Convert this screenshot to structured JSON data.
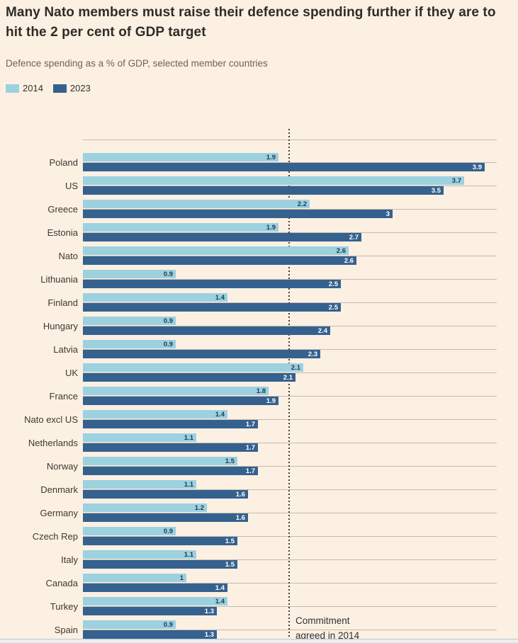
{
  "header": {
    "title_line1": "Many Nato members must raise their defence spending further if they are to",
    "title_line2": "hit the 2 per cent of GDP target",
    "subtitle": "Defence spending as a % of GDP, selected member countries"
  },
  "colors": {
    "background": "#fcf0e3",
    "bar_2014": "#9cd1e0",
    "bar_2023": "#35618e",
    "gridline": "#c3baae",
    "target_line": "#46413b",
    "value_label_on_light": "#1d3a55",
    "value_label_on_dark": "#ffffff"
  },
  "chart_data": {
    "type": "bar",
    "orientation": "horizontal",
    "xlabel": "Defence spending as a % of GDP",
    "x_range": [
      0,
      4.0
    ],
    "grid": "per-category horizontal gridlines",
    "legend_position": "top-left",
    "target_line": {
      "value": 2,
      "label_line1": "Commitment",
      "label_line2": "agreed in 2014"
    },
    "series": [
      {
        "name": "2014",
        "color": "#9cd1e0"
      },
      {
        "name": "2023",
        "color": "#35618e"
      }
    ],
    "categories": [
      "Poland",
      "US",
      "Greece",
      "Estonia",
      "Nato",
      "Lithuania",
      "Finland",
      "Hungary",
      "Latvia",
      "UK",
      "France",
      "Nato excl US",
      "Netherlands",
      "Norway",
      "Denmark",
      "Germany",
      "Czech Rep",
      "Italy",
      "Canada",
      "Turkey",
      "Spain"
    ],
    "rows": [
      {
        "country": "Poland",
        "v2014": 1.9,
        "v2023": 3.9,
        "label2014": "1.9",
        "label2023": "3.9"
      },
      {
        "country": "US",
        "v2014": 3.7,
        "v2023": 3.5,
        "label2014": "3.7",
        "label2023": "3.5"
      },
      {
        "country": "Greece",
        "v2014": 2.2,
        "v2023": 3.0,
        "label2014": "2.2",
        "label2023": "3"
      },
      {
        "country": "Estonia",
        "v2014": 1.9,
        "v2023": 2.7,
        "label2014": "1.9",
        "label2023": "2.7"
      },
      {
        "country": "Nato",
        "v2014": 2.58,
        "v2023": 2.65,
        "label2014": "2.6",
        "label2023": "2.6"
      },
      {
        "country": "Lithuania",
        "v2014": 0.9,
        "v2023": 2.5,
        "label2014": "0.9",
        "label2023": "2.5"
      },
      {
        "country": "Finland",
        "v2014": 1.4,
        "v2023": 2.5,
        "label2014": "1.4",
        "label2023": "2.5"
      },
      {
        "country": "Hungary",
        "v2014": 0.9,
        "v2023": 2.4,
        "label2014": "0.9",
        "label2023": "2.4"
      },
      {
        "country": "Latvia",
        "v2014": 0.9,
        "v2023": 2.3,
        "label2014": "0.9",
        "label2023": "2.3"
      },
      {
        "country": "UK",
        "v2014": 2.14,
        "v2023": 2.06,
        "label2014": "2.1",
        "label2023": "2.1"
      },
      {
        "country": "France",
        "v2014": 1.8,
        "v2023": 1.9,
        "label2014": "1.8",
        "label2023": "1.9"
      },
      {
        "country": "Nato excl US",
        "v2014": 1.4,
        "v2023": 1.7,
        "label2014": "1.4",
        "label2023": "1.7"
      },
      {
        "country": "Netherlands",
        "v2014": 1.1,
        "v2023": 1.7,
        "label2014": "1.1",
        "label2023": "1.7"
      },
      {
        "country": "Norway",
        "v2014": 1.5,
        "v2023": 1.7,
        "label2014": "1.5",
        "label2023": "1.7"
      },
      {
        "country": "Denmark",
        "v2014": 1.1,
        "v2023": 1.6,
        "label2014": "1.1",
        "label2023": "1.6"
      },
      {
        "country": "Germany",
        "v2014": 1.2,
        "v2023": 1.6,
        "label2014": "1.2",
        "label2023": "1.6"
      },
      {
        "country": "Czech Rep",
        "v2014": 0.9,
        "v2023": 1.5,
        "label2014": "0.9",
        "label2023": "1.5"
      },
      {
        "country": "Italy",
        "v2014": 1.1,
        "v2023": 1.5,
        "label2014": "1.1",
        "label2023": "1.5"
      },
      {
        "country": "Canada",
        "v2014": 1.0,
        "v2023": 1.4,
        "label2014": "1",
        "label2023": "1.4"
      },
      {
        "country": "Turkey",
        "v2014": 1.4,
        "v2023": 1.3,
        "label2014": "1.4",
        "label2023": "1.3"
      },
      {
        "country": "Spain",
        "v2014": 0.9,
        "v2023": 1.3,
        "label2014": "0.9",
        "label2023": "1.3"
      }
    ]
  }
}
